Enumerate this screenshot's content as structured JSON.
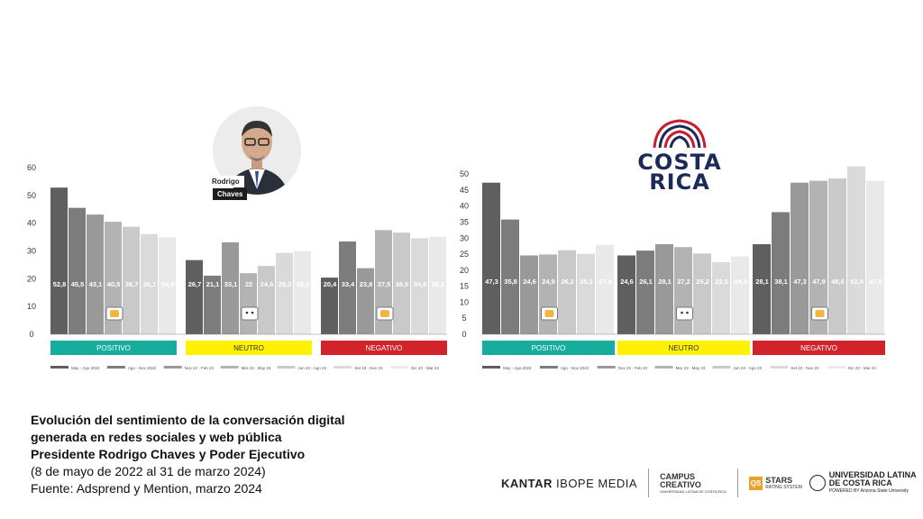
{
  "chart_data": [
    {
      "type": "bar",
      "subject": "Presidente Rodrigo Chaves",
      "categories": [
        "POSITIVO",
        "NEUTRO",
        "NEGATIVO"
      ],
      "category_colors": [
        "#16ad9c",
        "#fff200",
        "#d0232a"
      ],
      "series": [
        {
          "name": "May - Ago 2022",
          "values": [
            52.8,
            26.7,
            20.4
          ],
          "color": "#5f5f5f"
        },
        {
          "name": "Ago - Nov 2022",
          "values": [
            45.5,
            21.1,
            33.4
          ],
          "color": "#7c7c7c"
        },
        {
          "name": "Nov 22 - Feb 23",
          "values": [
            43.1,
            33.1,
            23.8
          ],
          "color": "#999999"
        },
        {
          "name": "Mar 23 - May 23",
          "values": [
            40.5,
            22,
            37.5
          ],
          "color": "#b3b3b3"
        },
        {
          "name": "Jun 23 - Ago 23",
          "values": [
            38.7,
            24.6,
            36.6
          ],
          "color": "#c9c9c9"
        },
        {
          "name": "Set 23 - Nov 23",
          "values": [
            36.1,
            29.3,
            34.6
          ],
          "color": "#dadada"
        },
        {
          "name": "Dic 23 - Mar 24",
          "values": [
            34.9,
            29.9,
            35.1
          ],
          "color": "#e9e9e9"
        }
      ],
      "value_labels": [
        [
          "52,8",
          "45,5",
          "43,1",
          "40,5",
          "38,7",
          "36,1",
          "34,9"
        ],
        [
          "26,7",
          "21,1",
          "33,1",
          "22",
          "24,6",
          "29,3",
          "29,9"
        ],
        [
          "20,4",
          "33,4",
          "23,8",
          "37,5",
          "36,6",
          "34,6",
          "35,1"
        ]
      ],
      "ylim": [
        0,
        60
      ],
      "yticks": [
        0,
        10,
        20,
        30,
        40,
        50,
        60
      ],
      "grid": false,
      "legend_position": "bottom"
    },
    {
      "type": "bar",
      "subject": "Poder Ejecutivo",
      "categories": [
        "POSITIVO",
        "NEUTRO",
        "NEGATIVO"
      ],
      "category_colors": [
        "#16ad9c",
        "#fff200",
        "#d0232a"
      ],
      "series": [
        {
          "name": "May - Ago 2022",
          "values": [
            47.3,
            24.6,
            28.1
          ],
          "color": "#5f5f5f"
        },
        {
          "name": "Ago - Nov 2022",
          "values": [
            35.8,
            26.1,
            38.1
          ],
          "color": "#7c7c7c"
        },
        {
          "name": "Nov 22 - Feb 23",
          "values": [
            24.6,
            28.1,
            47.3
          ],
          "color": "#999999"
        },
        {
          "name": "Mar 23 - May 23",
          "values": [
            24.9,
            27.2,
            47.9
          ],
          "color": "#b3b3b3"
        },
        {
          "name": "Jun 23 - Ago 23",
          "values": [
            26.2,
            25.2,
            48.6
          ],
          "color": "#c9c9c9"
        },
        {
          "name": "Set 23 - Nov 23",
          "values": [
            25.1,
            22.5,
            52.4
          ],
          "color": "#dadada"
        },
        {
          "name": "Dic 23 - Mar 24",
          "values": [
            27.9,
            24.3,
            47.9
          ],
          "color": "#e9e9e9"
        }
      ],
      "value_labels": [
        [
          "47,3",
          "35,8",
          "24,6",
          "24,9",
          "26,2",
          "25,1",
          "27,9"
        ],
        [
          "24,6",
          "26,1",
          "28,1",
          "27,2",
          "25,2",
          "22,5",
          "24,3"
        ],
        [
          "28,1",
          "38,1",
          "47,3",
          "47,9",
          "48,6",
          "52,4",
          "47,9"
        ]
      ],
      "ylim": [
        0,
        52
      ],
      "yticks": [
        0,
        5,
        10,
        15,
        20,
        25,
        30,
        35,
        40,
        45,
        50
      ],
      "grid": false,
      "legend_position": "bottom"
    }
  ],
  "photo_labels": {
    "line1": "Rodrigo",
    "line2": "Chaves"
  },
  "logo": {
    "line1": "COSTA",
    "line2": "RICA"
  },
  "caption": {
    "line1": "Evolución del sentimiento de la conversación digital",
    "line2": "generada en redes sociales y web pública",
    "line3": "Presidente Rodrigo Chaves y Poder Ejecutivo",
    "line4": "(8 de mayo de 2022 al 31 de marzo 2024)",
    "line5": "Fuente: Adsprend y Mention, marzo 2024"
  },
  "footer": {
    "kantar_bold": "KANTAR",
    "kantar_rest": " IBOPE MEDIA",
    "campus_line1": "CAMPUS",
    "campus_line2": "CREATIVO",
    "campus_sub": "UNIVERSIDAD LATINA DE COSTA RICA",
    "stars_badge": "QS",
    "stars_line1": "STARS",
    "stars_line2": "RATING SYSTEM",
    "ulat_line1": "UNIVERSIDAD LATINA",
    "ulat_line2": "DE COSTA RICA",
    "ulat_sub": "POWERED BY Arizona State University"
  }
}
